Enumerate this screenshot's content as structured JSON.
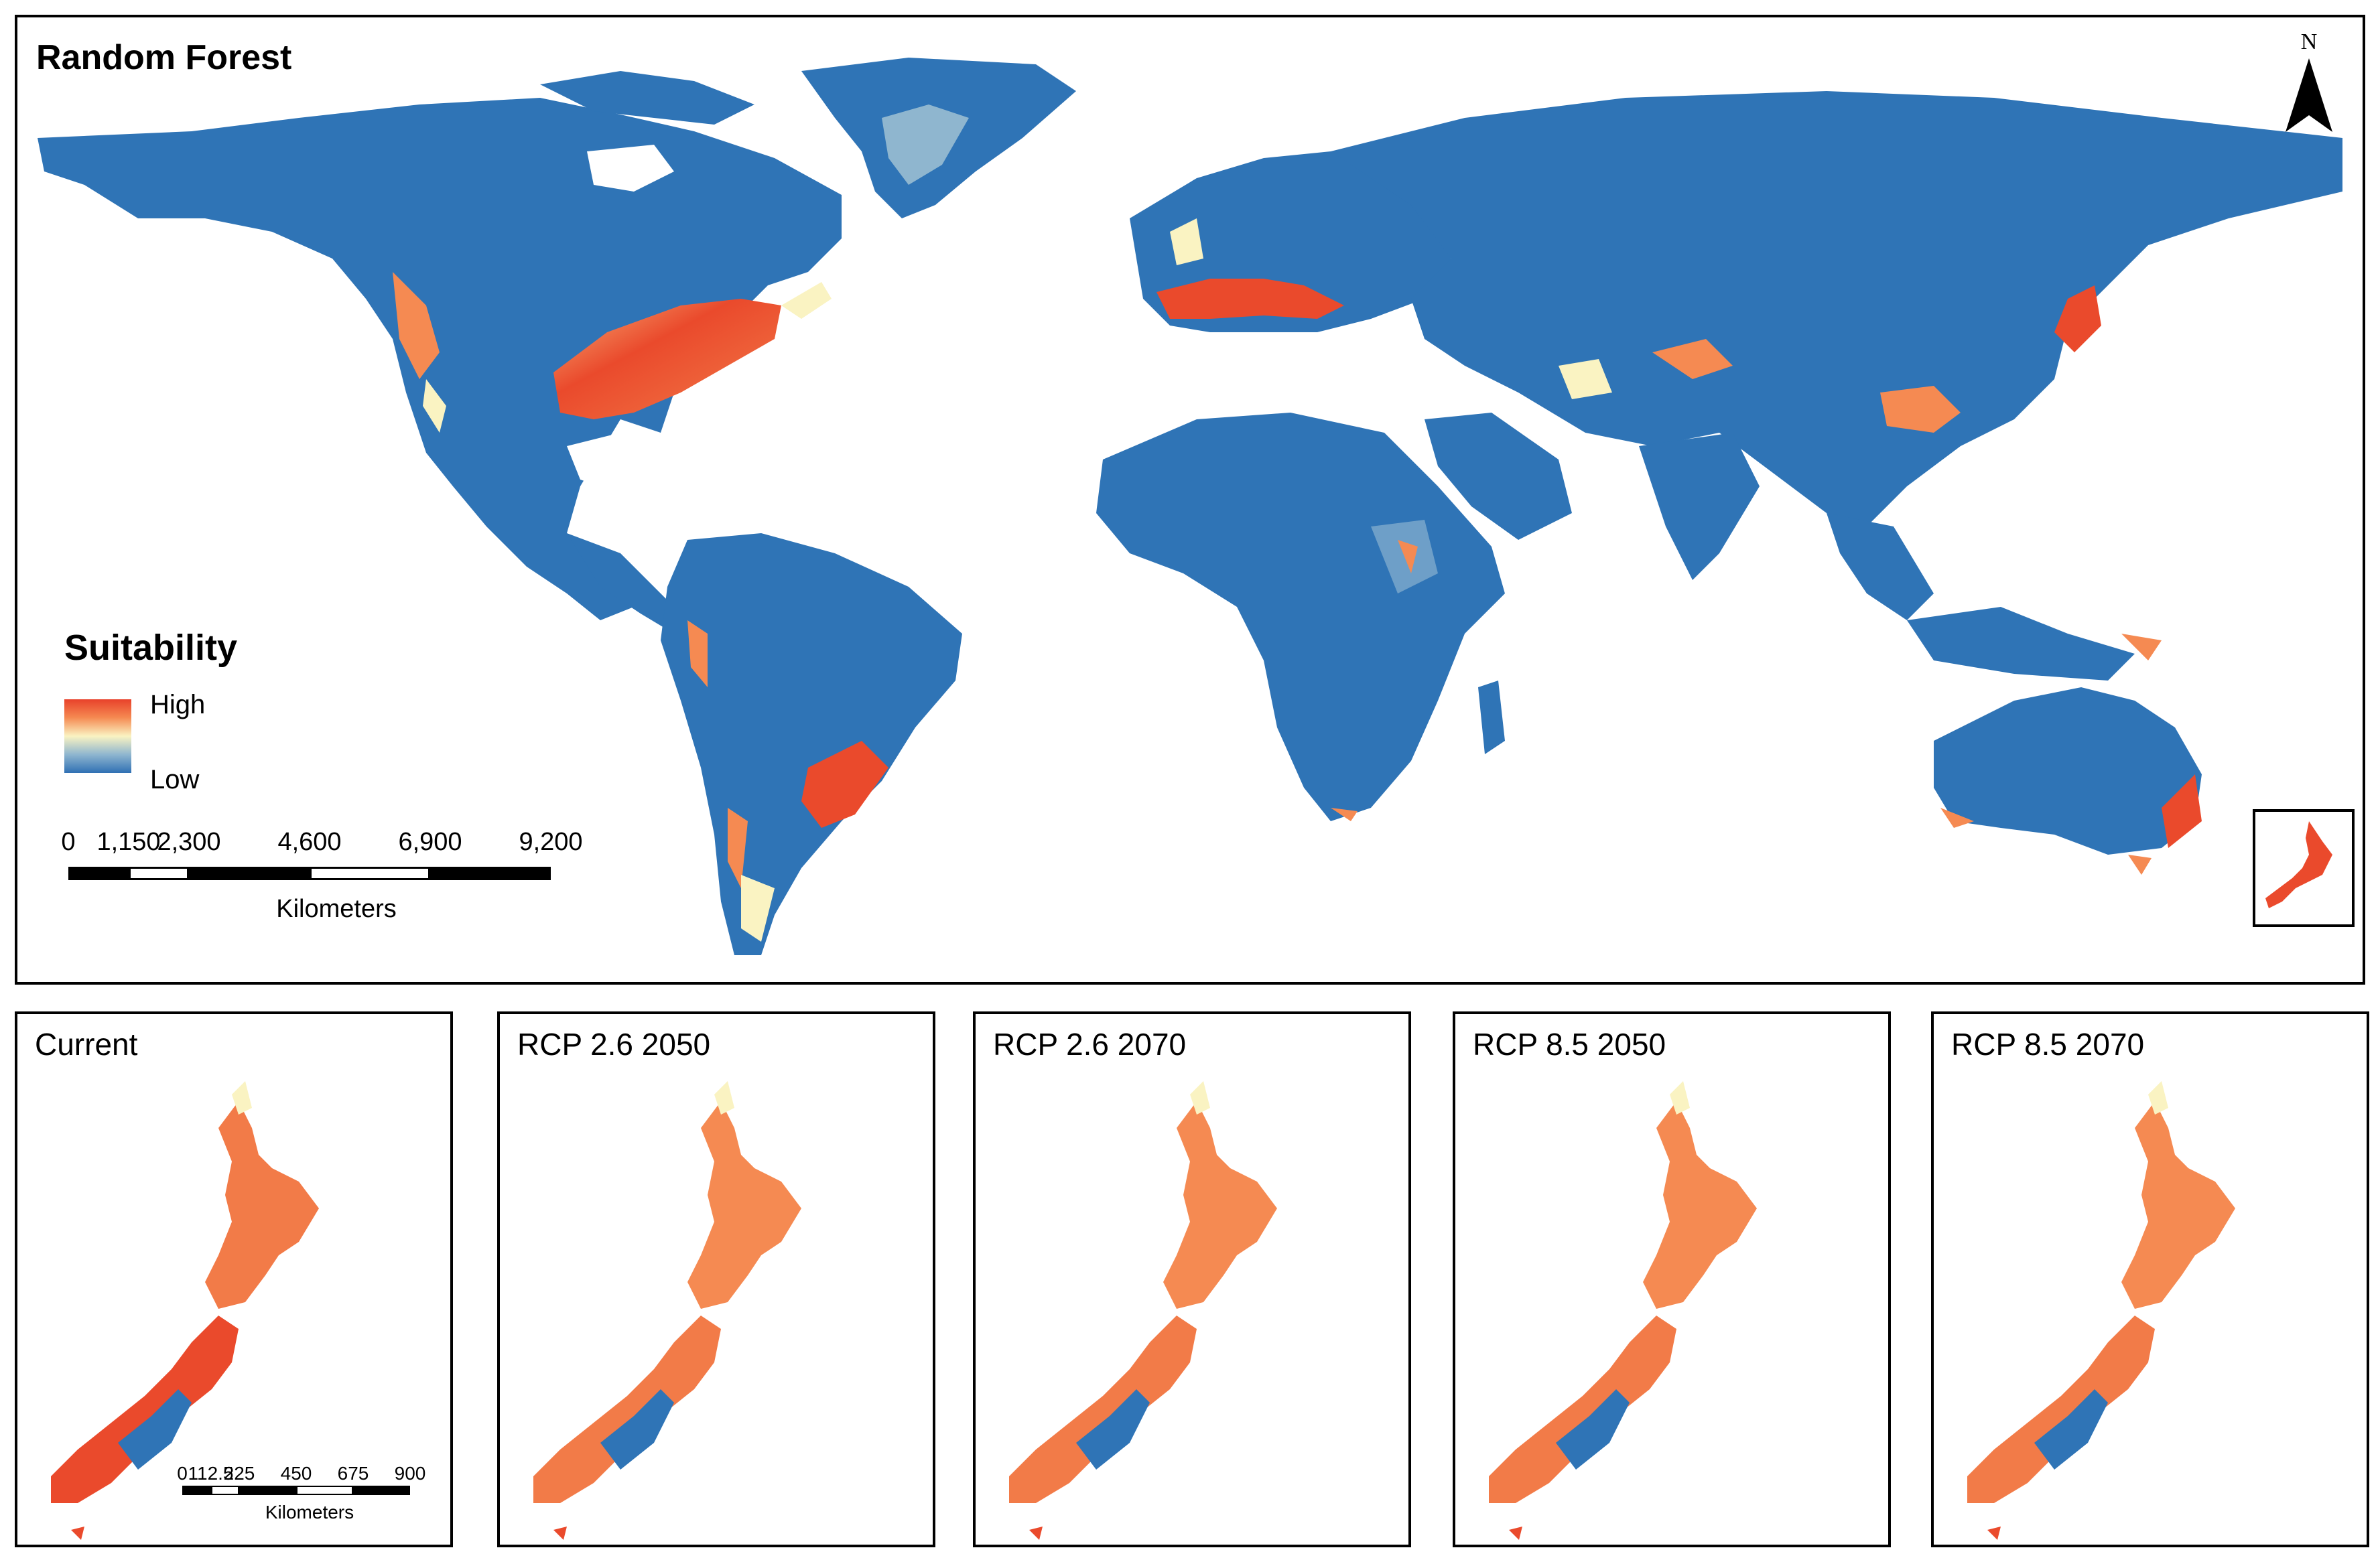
{
  "main_map": {
    "title": "Random Forest",
    "north_label": "N",
    "legend": {
      "title": "Suitability",
      "high_label": "High",
      "low_label": "Low",
      "colors": [
        "#e8412a",
        "#f58a52",
        "#faf3c2",
        "#8fb6cf",
        "#2f70b4"
      ]
    },
    "scale_bar": {
      "labels": [
        "0",
        "1,150",
        "2,300",
        "4,600",
        "6,900",
        "9,200"
      ],
      "values": [
        0,
        1150,
        2300,
        4600,
        6900,
        9200
      ],
      "unit": "Kilometers"
    }
  },
  "panels": [
    {
      "title": "Current"
    },
    {
      "title": "RCP 2.6 2050"
    },
    {
      "title": "RCP 2.6 2070"
    },
    {
      "title": "RCP 8.5 2050"
    },
    {
      "title": "RCP 8.5 2070"
    }
  ],
  "nz_scale_bar": {
    "labels": [
      "0",
      "112.5",
      "225",
      "450",
      "675",
      "900"
    ],
    "values": [
      0,
      112.5,
      225,
      450,
      675,
      900
    ],
    "unit": "Kilometers"
  },
  "colors": {
    "land_low": "#2f74b6",
    "mid": "#faf3c2",
    "high": "#e8412a"
  }
}
